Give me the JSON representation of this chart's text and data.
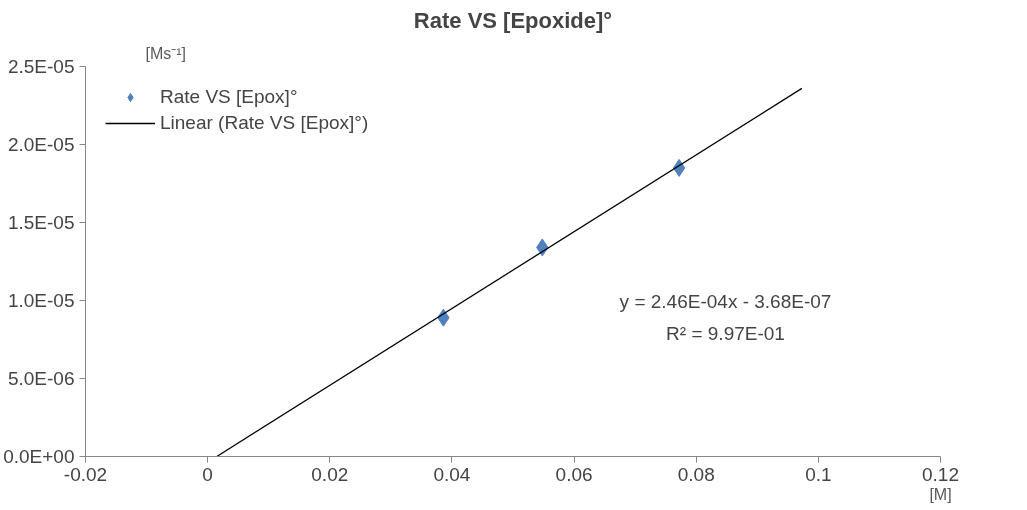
{
  "chart_data": {
    "type": "scatter",
    "title": "Rate VS [Epoxide]°",
    "xlabel": "[M]",
    "ylabel": "[Ms⁻¹]",
    "series": [
      {
        "name": "Rate VS [Epox]°",
        "color": "#4f81bd",
        "marker": "diamond",
        "x": [
          0.0386,
          0.0548,
          0.0772
        ],
        "values": [
          8.9e-06,
          1.34e-05,
          1.85e-05
        ]
      },
      {
        "name": "Linear (Rate VS [Epox]°)",
        "type": "line",
        "color": "#000000",
        "marker": "none",
        "line_style": "solid",
        "x": [
          0.0015,
          0.0973
        ],
        "values": [
          0.0,
          2.36e-05
        ]
      }
    ],
    "annotations": [
      "y = 2.46E-04x - 3.68E-07",
      "R² = 9.97E-01"
    ],
    "xlim": [
      -0.02,
      0.12
    ],
    "xticks": [
      -0.02,
      0,
      0.02,
      0.04,
      0.06,
      0.08,
      0.1,
      0.12
    ],
    "ylim": [
      0,
      2.5e-05
    ],
    "yticks": [
      {
        "value": 0,
        "label": "0.0E+00"
      },
      {
        "value": 5e-06,
        "label": "5.0E-06"
      },
      {
        "value": 1e-05,
        "label": "1.0E-05"
      },
      {
        "value": 1.5e-05,
        "label": "1.5E-05"
      },
      {
        "value": 2e-05,
        "label": "2.0E-05"
      },
      {
        "value": 2.5e-05,
        "label": "2.5E-05"
      }
    ],
    "grid": false,
    "legend": "top left"
  }
}
